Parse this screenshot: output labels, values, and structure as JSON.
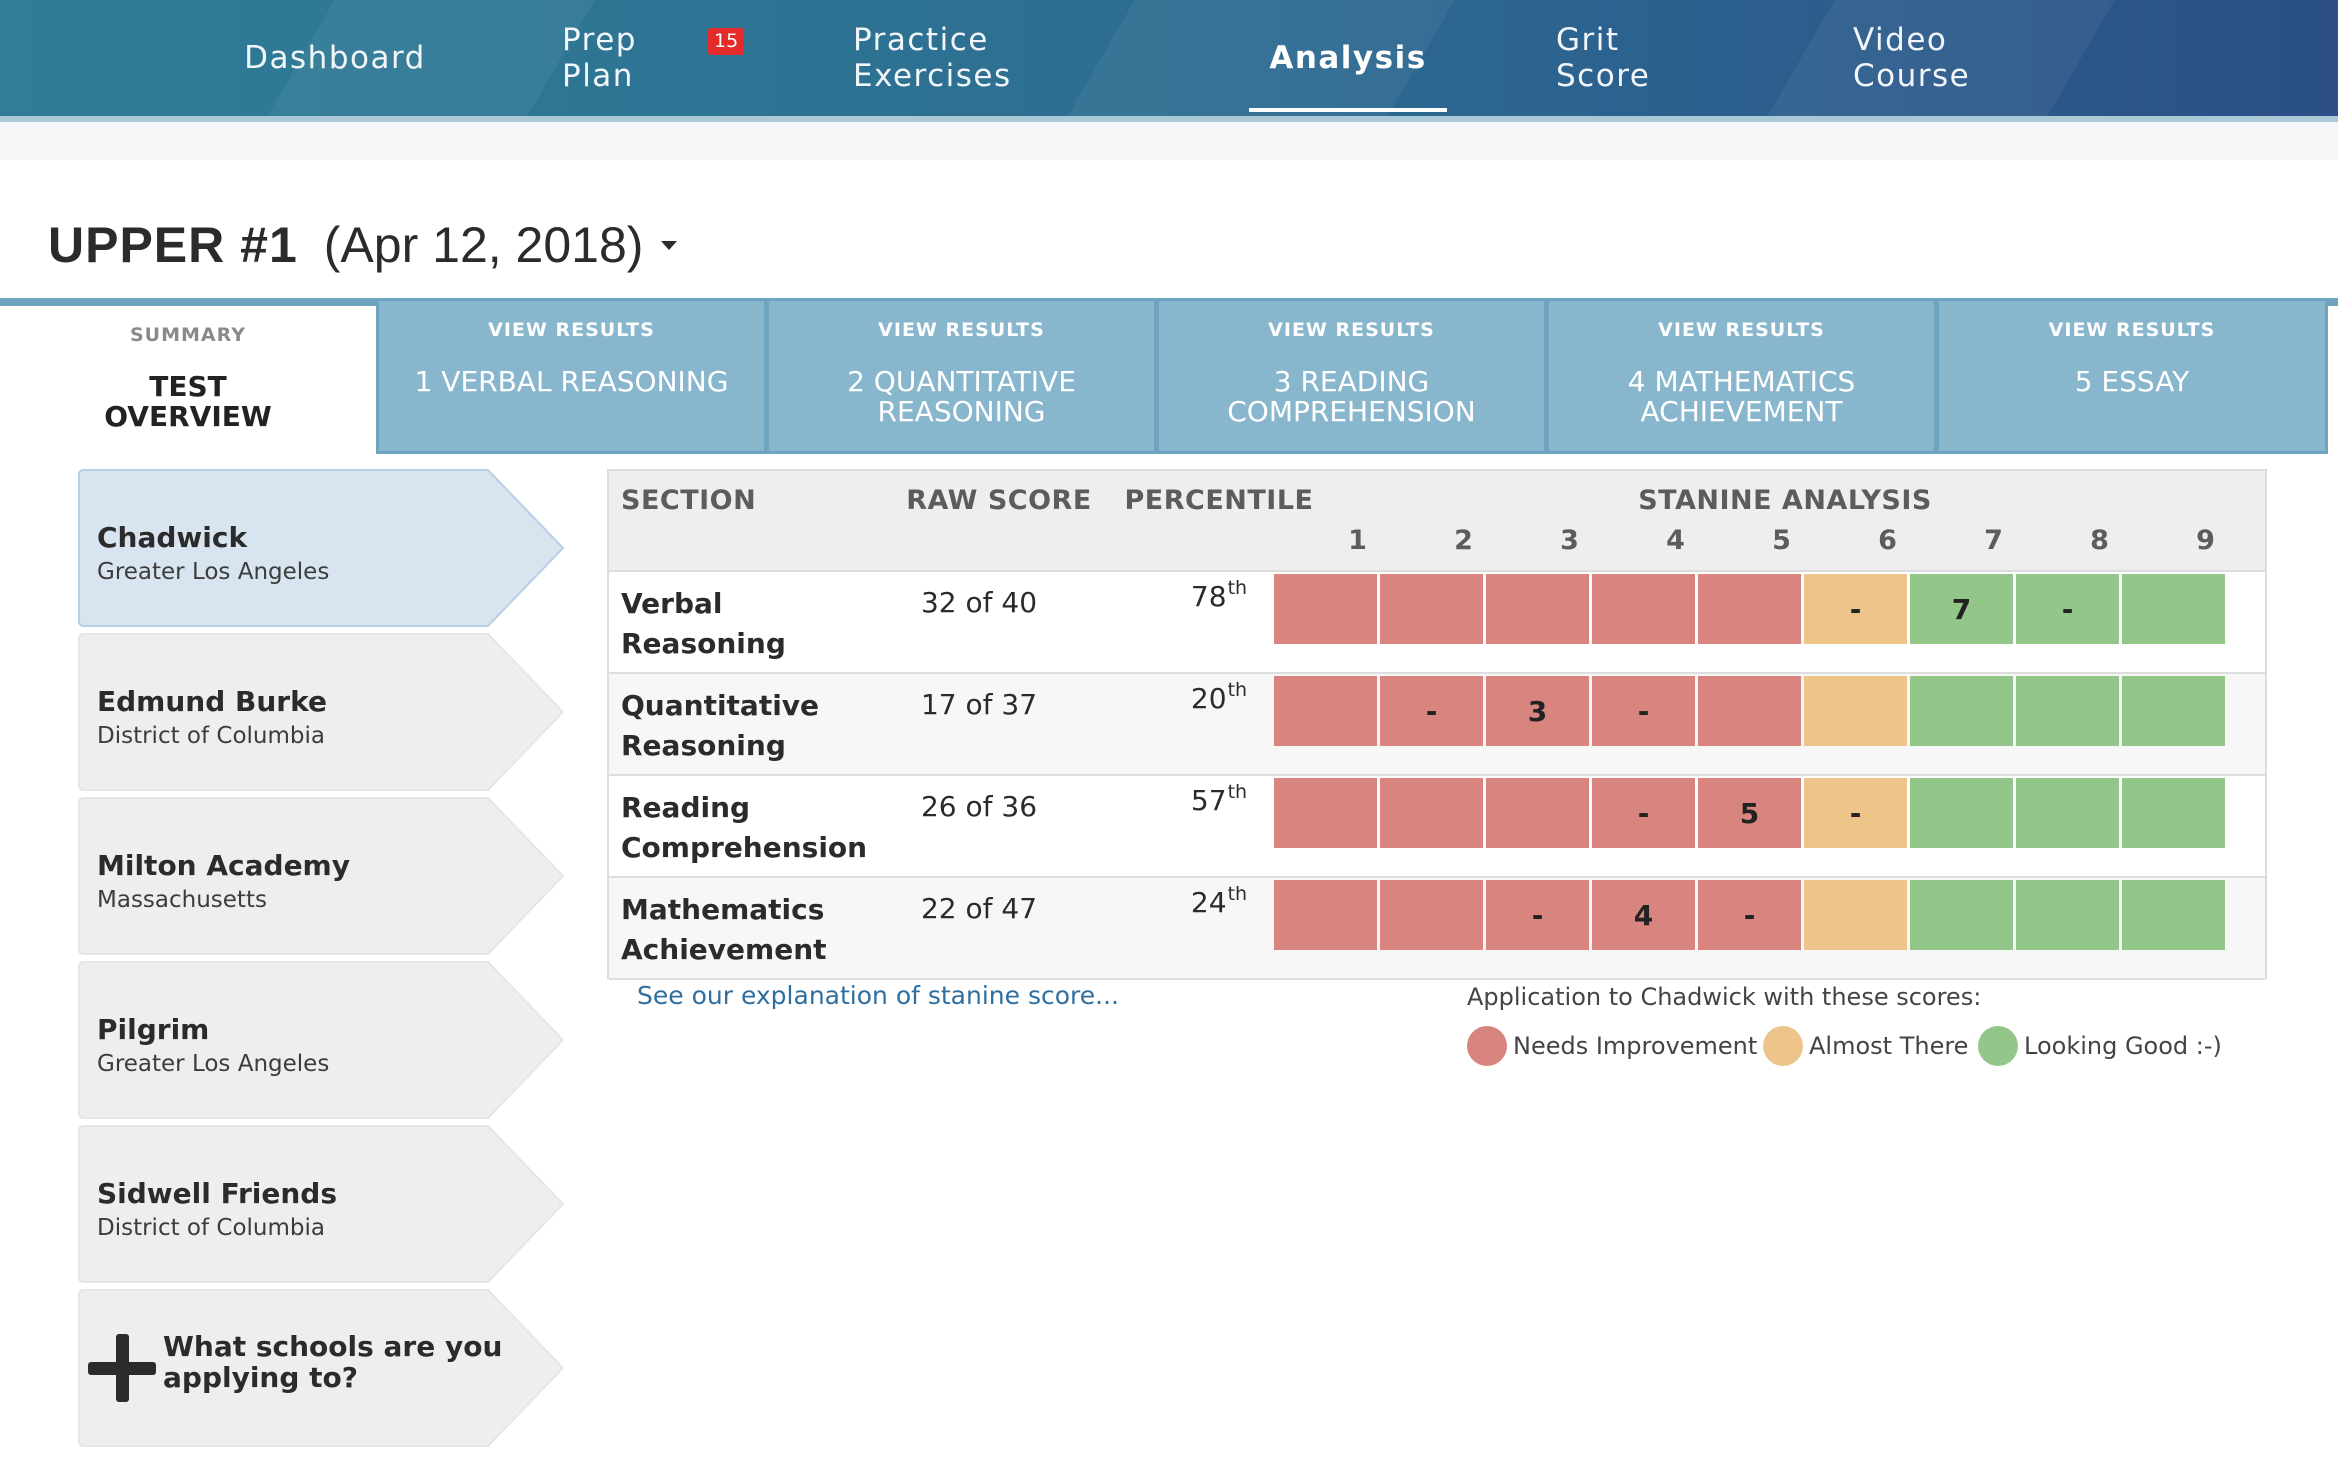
{
  "nav": {
    "items": [
      {
        "label": "Dashboard",
        "active": false
      },
      {
        "label": "Prep Plan",
        "active": false,
        "badge": "15"
      },
      {
        "label": "Practice Exercises",
        "active": false
      },
      {
        "label": "Analysis",
        "active": true
      },
      {
        "label": "Grit Score",
        "active": false
      },
      {
        "label": "Video Course",
        "active": false
      }
    ]
  },
  "test": {
    "name": "UPPER #1",
    "date": "(Apr 12, 2018)"
  },
  "tabs": [
    {
      "kicker": "SUMMARY",
      "label": "TEST OVERVIEW",
      "active": true
    },
    {
      "kicker": "VIEW RESULTS",
      "label": "1 VERBAL REASONING"
    },
    {
      "kicker": "VIEW RESULTS",
      "label": "2 QUANTITATIVE REASONING"
    },
    {
      "kicker": "VIEW RESULTS",
      "label": "3 READING COMPREHENSION"
    },
    {
      "kicker": "VIEW RESULTS",
      "label": "4 MATHEMATICS ACHIEVEMENT"
    },
    {
      "kicker": "VIEW RESULTS",
      "label": "5 ESSAY"
    }
  ],
  "schools": [
    {
      "name": "Chadwick",
      "location": "Greater Los Angeles",
      "selected": true
    },
    {
      "name": "Edmund Burke",
      "location": "District of Columbia"
    },
    {
      "name": "Milton Academy",
      "location": "Massachusetts"
    },
    {
      "name": "Pilgrim",
      "location": "Greater Los Angeles"
    },
    {
      "name": "Sidwell Friends",
      "location": "District of Columbia"
    }
  ],
  "add_school": {
    "label": "What schools are you applying to?"
  },
  "table": {
    "headers": {
      "section": "SECTION",
      "raw": "RAW SCORE",
      "percentile": "PERCENTILE",
      "stanine": "STANINE ANALYSIS"
    },
    "stanines": [
      "1",
      "2",
      "3",
      "4",
      "5",
      "6",
      "7",
      "8",
      "9"
    ],
    "rows": [
      {
        "section": "Verbal Reasoning",
        "raw": "32 of 40",
        "pct": "78",
        "pct_suffix": "th",
        "cells": [
          "",
          "",
          "",
          "",
          "",
          "-",
          "7",
          "-",
          ""
        ]
      },
      {
        "section": "Quantitative Reasoning",
        "raw": "17 of 37",
        "pct": "20",
        "pct_suffix": "th",
        "cells": [
          "",
          "-",
          "3",
          "-",
          "",
          "",
          "",
          "",
          ""
        ]
      },
      {
        "section": "Reading Comprehension",
        "raw": "26 of 36",
        "pct": "57",
        "pct_suffix": "th",
        "cells": [
          "",
          "",
          "",
          "-",
          "5",
          "-",
          "",
          "",
          ""
        ]
      },
      {
        "section": "Mathematics Achievement",
        "raw": "22 of 47",
        "pct": "24",
        "pct_suffix": "th",
        "cells": [
          "",
          "",
          "-",
          "4",
          "-",
          "",
          "",
          "",
          ""
        ]
      }
    ],
    "zones": [
      "red",
      "red",
      "red",
      "red",
      "red",
      "orange",
      "green",
      "green",
      "green"
    ]
  },
  "explain_link": "See our explanation of stanine score...",
  "legend": {
    "caption": "Application to Chadwick with these scores:",
    "items": [
      {
        "label": "Needs Improvement",
        "color": "#d88580"
      },
      {
        "label": "Almost There",
        "color": "#edc48a"
      },
      {
        "label": "Looking Good :-)",
        "color": "#93c78a"
      }
    ]
  }
}
